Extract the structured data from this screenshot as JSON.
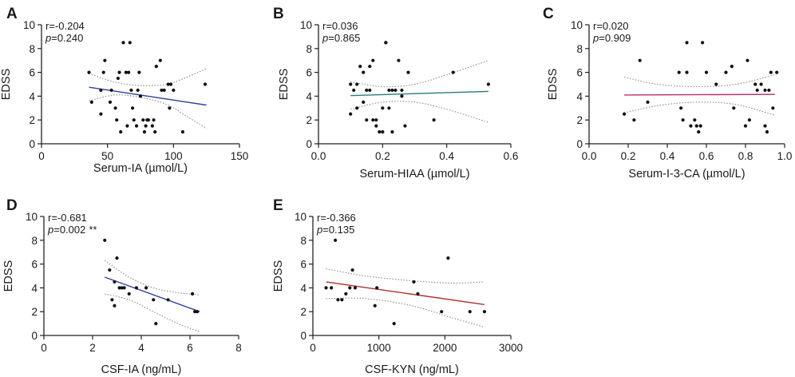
{
  "chart_data": [
    {
      "panel": "A",
      "type": "scatter",
      "xlabel": "Serum-IA (µmol/L)",
      "ylabel": "EDSS",
      "xlim": [
        0,
        150
      ],
      "ylim": [
        0,
        10
      ],
      "xticks": [
        "0",
        "50",
        "100",
        "150"
      ],
      "yticks": [
        "0",
        "2",
        "4",
        "6",
        "8",
        "10"
      ],
      "stats": {
        "r": "r=-0.204",
        "p": "=0.240",
        "sig": ""
      },
      "fit_color": "#2d3f9e",
      "fit": [
        [
          36,
          4.75
        ],
        [
          125,
          3.25
        ]
      ],
      "ci_upper": [
        [
          36,
          5.9
        ],
        [
          55,
          5.2
        ],
        [
          75,
          4.9
        ],
        [
          95,
          5.0
        ],
        [
          110,
          5.6
        ],
        [
          125,
          6.3
        ]
      ],
      "ci_lower": [
        [
          36,
          3.6
        ],
        [
          55,
          4.1
        ],
        [
          75,
          3.9
        ],
        [
          95,
          3.3
        ],
        [
          110,
          2.3
        ],
        [
          125,
          1.3
        ]
      ],
      "points": [
        [
          36,
          6
        ],
        [
          38,
          3.5
        ],
        [
          45,
          4.5
        ],
        [
          45,
          2.5
        ],
        [
          47,
          6
        ],
        [
          48,
          7
        ],
        [
          52,
          3.5
        ],
        [
          53,
          4.5
        ],
        [
          56,
          3
        ],
        [
          57,
          2
        ],
        [
          58,
          5.5
        ],
        [
          59,
          6
        ],
        [
          60,
          1
        ],
        [
          62,
          8.5
        ],
        [
          64,
          6
        ],
        [
          65,
          1.5
        ],
        [
          66,
          6
        ],
        [
          67,
          8.5
        ],
        [
          68,
          4.5
        ],
        [
          69,
          3
        ],
        [
          70,
          2
        ],
        [
          72,
          1.5
        ],
        [
          73,
          4.5
        ],
        [
          74,
          6
        ],
        [
          75,
          4
        ],
        [
          77,
          2
        ],
        [
          78,
          1
        ],
        [
          79,
          1.5
        ],
        [
          80,
          2
        ],
        [
          81,
          2
        ],
        [
          84,
          1.5
        ],
        [
          85,
          2
        ],
        [
          86,
          1
        ],
        [
          87,
          6.5
        ],
        [
          90,
          7
        ],
        [
          91,
          4.5
        ],
        [
          93,
          4.5
        ],
        [
          96,
          5
        ],
        [
          97,
          3
        ],
        [
          98,
          5
        ],
        [
          100,
          4.5
        ],
        [
          107,
          1
        ],
        [
          124,
          5
        ]
      ]
    },
    {
      "panel": "B",
      "type": "scatter",
      "xlabel": "Serum-HIAA (µmol/L)",
      "ylabel": "EDSS",
      "xlim": [
        0,
        0.6
      ],
      "ylim": [
        0,
        10
      ],
      "xticks": [
        "0.0",
        "0.2",
        "0.4",
        "0.6"
      ],
      "yticks": [
        "0",
        "2",
        "4",
        "6",
        "8",
        "10"
      ],
      "stats": {
        "r": "r=0.036",
        "p": "=0.865",
        "sig": ""
      },
      "fit_color": "#2b7a7a",
      "fit": [
        [
          0.1,
          4.05
        ],
        [
          0.53,
          4.4
        ]
      ],
      "ci_upper": [
        [
          0.1,
          5.2
        ],
        [
          0.2,
          4.8
        ],
        [
          0.3,
          5.0
        ],
        [
          0.4,
          5.8
        ],
        [
          0.53,
          7.0
        ]
      ],
      "ci_lower": [
        [
          0.1,
          2.9
        ],
        [
          0.2,
          3.5
        ],
        [
          0.3,
          3.5
        ],
        [
          0.4,
          2.9
        ],
        [
          0.53,
          1.8
        ]
      ],
      "points": [
        [
          0.1,
          5
        ],
        [
          0.1,
          2.5
        ],
        [
          0.11,
          4.5
        ],
        [
          0.12,
          5
        ],
        [
          0.12,
          3
        ],
        [
          0.13,
          6.5
        ],
        [
          0.14,
          3.5
        ],
        [
          0.14,
          6
        ],
        [
          0.15,
          4.5
        ],
        [
          0.15,
          2
        ],
        [
          0.16,
          4.5
        ],
        [
          0.16,
          6.5
        ],
        [
          0.17,
          7
        ],
        [
          0.17,
          2
        ],
        [
          0.18,
          1.5
        ],
        [
          0.18,
          2
        ],
        [
          0.19,
          1
        ],
        [
          0.2,
          1
        ],
        [
          0.2,
          3
        ],
        [
          0.21,
          8.5
        ],
        [
          0.21,
          8.5
        ],
        [
          0.22,
          3
        ],
        [
          0.22,
          4.5
        ],
        [
          0.23,
          4.5
        ],
        [
          0.23,
          1
        ],
        [
          0.24,
          4.5
        ],
        [
          0.25,
          7
        ],
        [
          0.26,
          4.5
        ],
        [
          0.26,
          4
        ],
        [
          0.27,
          1.5
        ],
        [
          0.28,
          6
        ],
        [
          0.36,
          2
        ],
        [
          0.42,
          6
        ],
        [
          0.53,
          5
        ]
      ]
    },
    {
      "panel": "C",
      "type": "scatter",
      "xlabel": "Serum-I-3-CA (µmol/L)",
      "ylabel": "EDSS",
      "xlim": [
        0,
        1.0
      ],
      "ylim": [
        0,
        10
      ],
      "xticks": [
        "0.0",
        "0.2",
        "0.4",
        "0.6",
        "0.8",
        "1.0"
      ],
      "yticks": [
        "0",
        "2",
        "4",
        "6",
        "8",
        "10"
      ],
      "stats": {
        "r": "r=0.020",
        "p": "=0.909",
        "sig": ""
      },
      "fit_color": "#b5306a",
      "fit": [
        [
          0.18,
          4.1
        ],
        [
          0.95,
          4.15
        ]
      ],
      "ci_upper": [
        [
          0.18,
          5.6
        ],
        [
          0.35,
          5.0
        ],
        [
          0.55,
          4.8
        ],
        [
          0.75,
          5.0
        ],
        [
          0.95,
          5.8
        ]
      ],
      "ci_lower": [
        [
          0.18,
          2.6
        ],
        [
          0.35,
          3.2
        ],
        [
          0.55,
          3.5
        ],
        [
          0.75,
          3.3
        ],
        [
          0.95,
          2.4
        ]
      ],
      "points": [
        [
          0.18,
          2.5
        ],
        [
          0.23,
          2
        ],
        [
          0.26,
          7
        ],
        [
          0.3,
          3.5
        ],
        [
          0.46,
          6
        ],
        [
          0.47,
          3
        ],
        [
          0.48,
          2
        ],
        [
          0.5,
          8.5
        ],
        [
          0.5,
          6
        ],
        [
          0.52,
          1.5
        ],
        [
          0.54,
          2
        ],
        [
          0.55,
          1.5
        ],
        [
          0.56,
          1
        ],
        [
          0.57,
          1.5
        ],
        [
          0.58,
          8.5
        ],
        [
          0.6,
          6
        ],
        [
          0.65,
          5
        ],
        [
          0.7,
          6
        ],
        [
          0.73,
          6.5
        ],
        [
          0.74,
          3
        ],
        [
          0.8,
          1.5
        ],
        [
          0.81,
          7
        ],
        [
          0.82,
          2
        ],
        [
          0.85,
          5
        ],
        [
          0.86,
          4.5
        ],
        [
          0.88,
          5
        ],
        [
          0.9,
          4.5
        ],
        [
          0.9,
          1.5
        ],
        [
          0.91,
          1
        ],
        [
          0.92,
          4.5
        ],
        [
          0.93,
          6
        ],
        [
          0.94,
          3
        ],
        [
          0.96,
          6
        ]
      ]
    },
    {
      "panel": "D",
      "type": "scatter",
      "xlabel": "CSF-IA (ng/mL)",
      "ylabel": "EDSS",
      "xlim": [
        0,
        8
      ],
      "ylim": [
        0,
        10
      ],
      "xticks": [
        "0",
        "2",
        "4",
        "6",
        "8"
      ],
      "yticks": [
        "0",
        "2",
        "4",
        "6",
        "8",
        "10"
      ],
      "stats": {
        "r": "r=-0.681",
        "p": "=0.002",
        "sig": "**"
      },
      "fit_color": "#2d3f9e",
      "fit": [
        [
          2.5,
          4.9
        ],
        [
          6.4,
          2.0
        ]
      ],
      "ci_upper": [
        [
          2.5,
          6.3
        ],
        [
          3.5,
          4.9
        ],
        [
          4.5,
          4.0
        ],
        [
          5.5,
          3.6
        ],
        [
          6.4,
          3.4
        ]
      ],
      "ci_lower": [
        [
          2.5,
          3.5
        ],
        [
          3.5,
          3.0
        ],
        [
          4.5,
          2.0
        ],
        [
          5.5,
          1.0
        ],
        [
          6.4,
          0.3
        ]
      ],
      "points": [
        [
          2.5,
          8
        ],
        [
          2.7,
          5.5
        ],
        [
          2.8,
          3
        ],
        [
          2.9,
          4.5
        ],
        [
          2.9,
          2.5
        ],
        [
          3.0,
          6.5
        ],
        [
          3.1,
          4
        ],
        [
          3.2,
          4
        ],
        [
          3.3,
          4
        ],
        [
          3.5,
          3.5
        ],
        [
          3.8,
          4
        ],
        [
          4.2,
          4
        ],
        [
          4.5,
          3
        ],
        [
          4.6,
          1
        ],
        [
          5.1,
          3
        ],
        [
          6.1,
          3.5
        ],
        [
          6.2,
          2
        ],
        [
          6.3,
          2
        ]
      ]
    },
    {
      "panel": "E",
      "type": "scatter",
      "xlabel": "CSF-KYN (ng/mL)",
      "ylabel": "EDSS",
      "xlim": [
        0,
        3000
      ],
      "ylim": [
        0,
        10
      ],
      "xticks": [
        "0",
        "1000",
        "2000",
        "3000"
      ],
      "yticks": [
        "0",
        "2",
        "4",
        "6",
        "8",
        "10"
      ],
      "stats": {
        "r": "r=-0.366",
        "p": "=0.135",
        "sig": ""
      },
      "fit_color": "#b03030",
      "fit": [
        [
          200,
          4.5
        ],
        [
          2600,
          2.6
        ]
      ],
      "ci_upper": [
        [
          200,
          5.6
        ],
        [
          800,
          5.0
        ],
        [
          1500,
          4.6
        ],
        [
          2100,
          4.4
        ],
        [
          2600,
          4.5
        ]
      ],
      "ci_lower": [
        [
          200,
          3.1
        ],
        [
          800,
          3.1
        ],
        [
          1500,
          2.5
        ],
        [
          2100,
          1.5
        ],
        [
          2600,
          0.7
        ]
      ],
      "points": [
        [
          200,
          4
        ],
        [
          280,
          4
        ],
        [
          340,
          8
        ],
        [
          380,
          3
        ],
        [
          440,
          3
        ],
        [
          500,
          3.5
        ],
        [
          560,
          4
        ],
        [
          600,
          5.5
        ],
        [
          640,
          4
        ],
        [
          940,
          2.5
        ],
        [
          970,
          4
        ],
        [
          1230,
          1
        ],
        [
          1530,
          4.5
        ],
        [
          1590,
          3.5
        ],
        [
          1950,
          2
        ],
        [
          2050,
          6.5
        ],
        [
          2380,
          2
        ],
        [
          2600,
          2
        ]
      ]
    }
  ]
}
